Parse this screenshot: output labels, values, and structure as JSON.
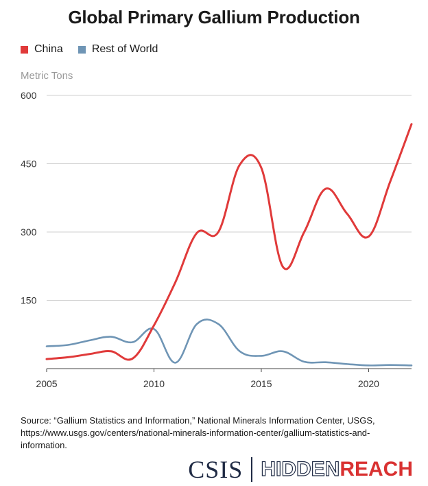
{
  "title": "Global Primary Gallium Production",
  "source": "Source: “Gallium Statistics and Information,” National Minerals Information Center, USGS, https://www.usgs.gov/centers/national-minerals-information-center/gallium-statistics-and-information.",
  "logo": {
    "csis": "CSIS",
    "hidden": "HIDDEN",
    "reach": "REACH"
  },
  "chart_data": {
    "type": "line",
    "title": "Global Primary Gallium Production",
    "ylabel": "Metric Tons",
    "xlabel": "",
    "xlim": [
      2005,
      2022
    ],
    "ylim": [
      0,
      600
    ],
    "x_ticks": [
      2005,
      2010,
      2015,
      2020
    ],
    "y_ticks": [
      150,
      300,
      450,
      600
    ],
    "grid": true,
    "legend": "top-left",
    "x": [
      2005,
      2006,
      2007,
      2008,
      2009,
      2010,
      2011,
      2012,
      2013,
      2014,
      2015,
      2016,
      2017,
      2018,
      2019,
      2020,
      2021,
      2022
    ],
    "series": [
      {
        "name": "China",
        "color": "#e03a3a",
        "values": [
          21,
          25,
          32,
          38,
          22,
          95,
          190,
          298,
          300,
          448,
          441,
          224,
          300,
          395,
          340,
          290,
          410,
          537
        ]
      },
      {
        "name": "Rest of World",
        "color": "#6f95b5",
        "values": [
          49,
          52,
          62,
          70,
          58,
          87,
          13,
          98,
          98,
          38,
          28,
          38,
          15,
          14,
          10,
          7,
          8,
          7
        ]
      }
    ]
  }
}
